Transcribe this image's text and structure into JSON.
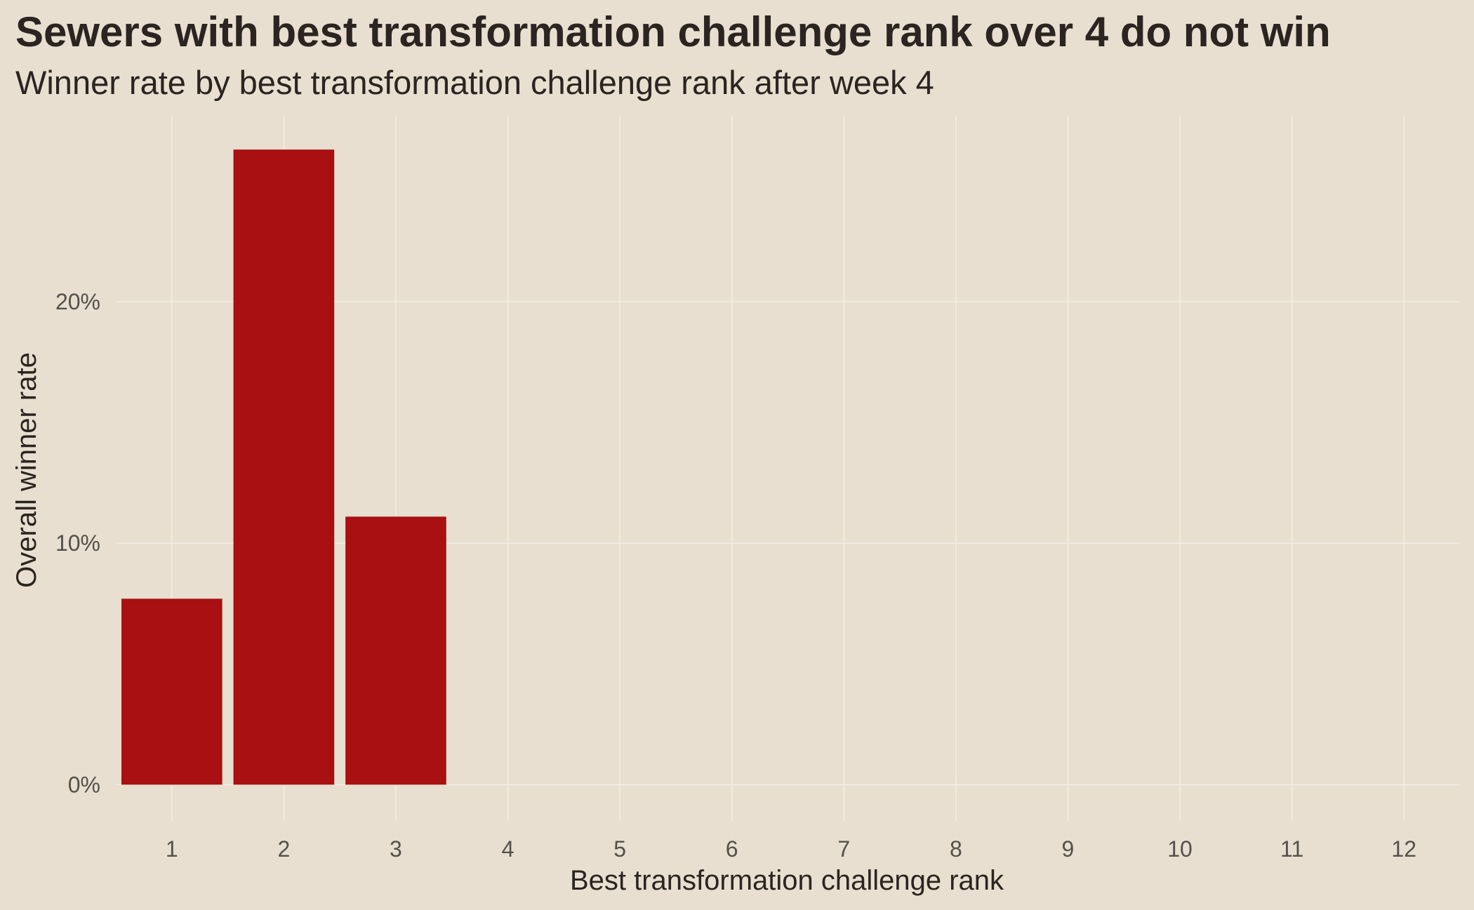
{
  "chart_data": {
    "type": "bar",
    "title": "Sewers with best transformation challenge rank over 4 do not win",
    "subtitle": "Winner rate by best transformation challenge rank after week 4",
    "xlabel": "Best transformation challenge rank",
    "ylabel": "Overall winner rate",
    "categories": [
      "1",
      "2",
      "3",
      "4",
      "5",
      "6",
      "7",
      "8",
      "9",
      "10",
      "11",
      "12"
    ],
    "values": [
      0.077,
      0.263,
      0.111,
      0,
      0,
      0,
      0,
      0,
      0,
      0,
      0,
      0
    ],
    "ylim": [
      -0.015,
      0.277
    ],
    "yticks": [
      0,
      0.1,
      0.2
    ],
    "ytick_labels": [
      "0%",
      "10%",
      "20%"
    ],
    "grid": true,
    "legend": "none",
    "bar_color": "#a81012",
    "background_color": "#e8dfd0"
  }
}
